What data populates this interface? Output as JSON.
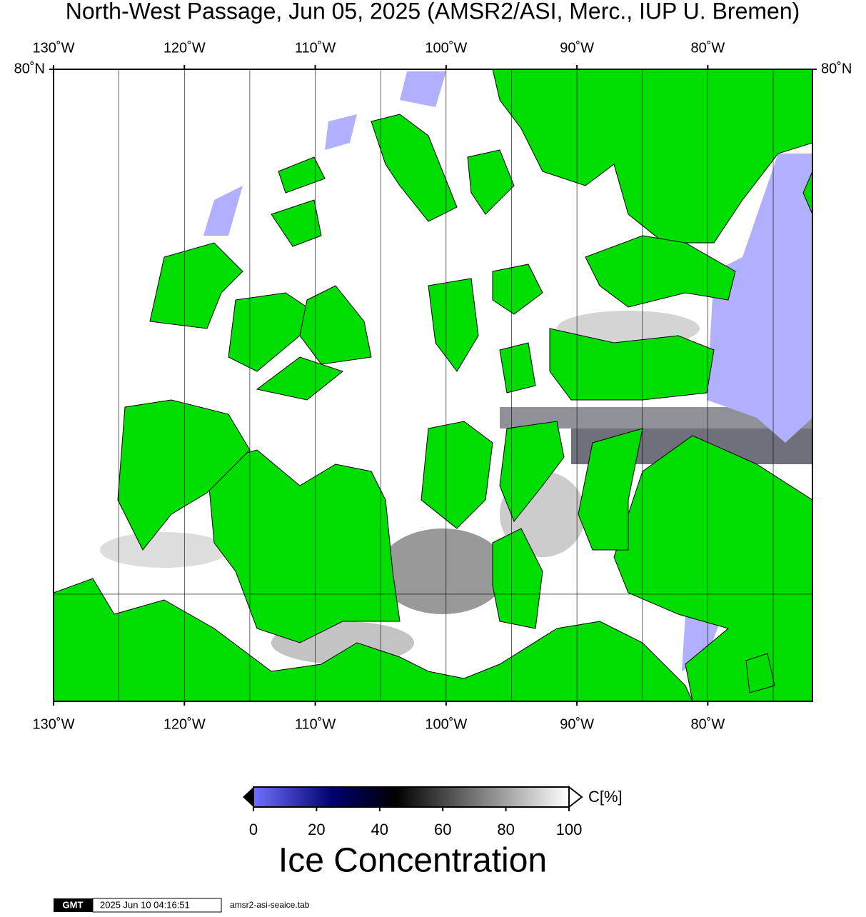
{
  "map": {
    "title": "North-West Passage, Jun 05, 2025 (AMSR2/ASI, Merc., IUP U. Bremen)",
    "projection": "mercator",
    "lon_range": [
      -130,
      -72
    ],
    "lat_range": [
      67,
      80
    ],
    "lon_ticks": [
      {
        "value": -130,
        "label": "130˚W"
      },
      {
        "value": -120,
        "label": "120˚W"
      },
      {
        "value": -110,
        "label": "110˚W"
      },
      {
        "value": -100,
        "label": "100˚W"
      },
      {
        "value": -90,
        "label": "90˚W"
      },
      {
        "value": -80,
        "label": "80˚W"
      }
    ],
    "lon_gridlines": [
      -125,
      -120,
      -115,
      -110,
      -105,
      -100,
      -95,
      -90,
      -85,
      -80,
      -75
    ],
    "lat_ticks": [
      {
        "value": 80,
        "label": "80˚N"
      }
    ],
    "lat_gridlines": [
      70
    ]
  },
  "colorbar": {
    "unit_label": "C[%]",
    "title": "Ice Concentration",
    "range": [
      0,
      100
    ],
    "ticks": [
      0,
      20,
      40,
      60,
      80,
      100
    ],
    "colormap": [
      {
        "value": 0,
        "color": "#7070ff"
      },
      {
        "value": 25,
        "color": "#000070"
      },
      {
        "value": 45,
        "color": "#000000"
      },
      {
        "value": 100,
        "color": "#ffffff"
      }
    ]
  },
  "footer": {
    "logo": "GMT",
    "timestamp": "2025 Jun 10 04:16:51",
    "source": "amsr2-asi-seaice.tab"
  }
}
